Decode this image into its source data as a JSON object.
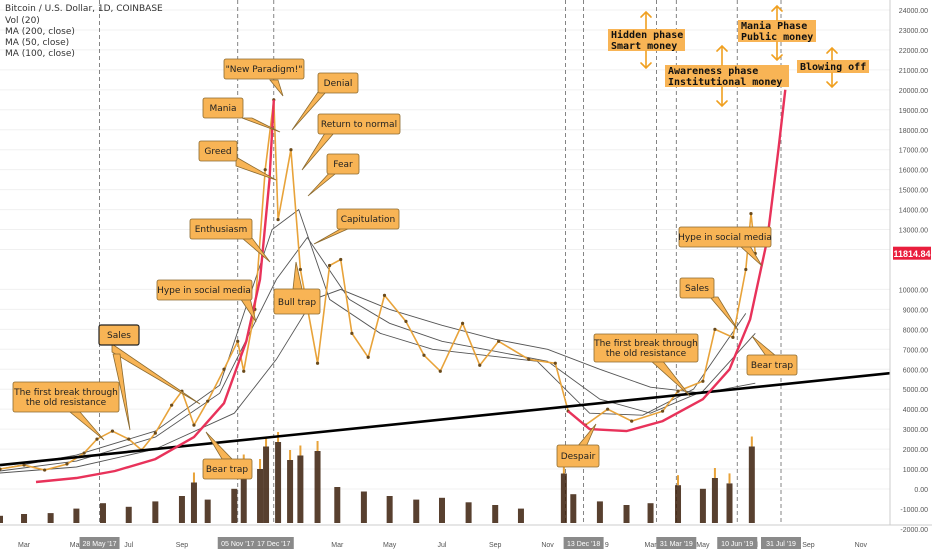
{
  "header": {
    "title": "Bitcoin / U.S. Dollar, 1D, COINBASE",
    "indicators": [
      "Vol (20)",
      "MA (200, close)",
      "MA (50, close)",
      "MA (100, close)"
    ]
  },
  "price_badge": "11814.84",
  "colors": {
    "price_badge": "#e91e3d",
    "parabola": "#e8325a",
    "callout_fill": "#f8b455",
    "callout_stroke": "#8a6a30",
    "trendline": "#000000",
    "candle": "#e8a33a",
    "volume": "#3b1f0a",
    "ma_line": "#555555"
  },
  "annotations": {
    "new_paradigm": "\"New Paradigm!\"",
    "denial": "Denial",
    "mania": "Mania",
    "return_to_normal": "Return to normal",
    "greed": "Greed",
    "fear": "Fear",
    "capitulation": "Capitulation",
    "enthusiasm": "Enthusiasm",
    "hype_1": "Hype in social media",
    "bull_trap": "Bull trap",
    "sales_1": "Sales",
    "first_break_1a": "The first break through",
    "first_break_1b": "the old resistance",
    "bear_trap_1": "Bear trap",
    "first_break_2a": "The first break through",
    "first_break_2b": "the old resistance",
    "despair": "Despair",
    "hype_2": "Hype in social media",
    "sales_2": "Sales",
    "bear_trap_2": "Bear trap",
    "hidden_phase_a": "Hidden phase",
    "hidden_phase_b": "Smart money",
    "awareness_a": "Awareness phase",
    "awareness_b": "Institutional money",
    "mania_phase_a": "Mania Phase",
    "mania_phase_b": "Public money",
    "blowing_off": "Blowing off"
  },
  "chart_data": {
    "type": "line",
    "title": "Bitcoin / U.S. Dollar, 1D, COINBASE",
    "y_ticks": [
      24000,
      23000,
      22000,
      21000,
      20000,
      19000,
      18000,
      17000,
      16000,
      15000,
      14000,
      13000,
      12000,
      10000,
      9000,
      8000,
      7000,
      6000,
      5000,
      4000,
      3000,
      2000,
      1000,
      0
    ],
    "y_tick_labels": [
      "24000.00",
      "23000.00",
      "22000.00",
      "21000.00",
      "20000.00",
      "19000.00",
      "18000.00",
      "17000.00",
      "16000.00",
      "15000.00",
      "14000.00",
      "13000.00",
      "12000.00",
      "10000.00",
      "9000.00",
      "8000.00",
      "7000.00",
      "6000.00",
      "5000.00",
      "4000.00",
      "3000.00",
      "2000.00",
      "1000.00",
      "0.00"
    ],
    "y_tick_labels_low": [
      "-1000.00",
      "-2000.00"
    ],
    "ylim": [
      -2300,
      24300
    ],
    "x_tick_labels": [
      {
        "label": "Mar",
        "date": "2017-03-01"
      },
      {
        "label": "May",
        "date": "2017-05-01"
      },
      {
        "label": "Jul",
        "date": "2017-07-01"
      },
      {
        "label": "Sep",
        "date": "2017-09-01"
      },
      {
        "label": "Mar",
        "date": "2018-03-01"
      },
      {
        "label": "May",
        "date": "2018-05-01"
      },
      {
        "label": "Jul",
        "date": "2018-07-01"
      },
      {
        "label": "Sep",
        "date": "2018-09-01"
      },
      {
        "label": "Nov",
        "date": "2018-11-01"
      },
      {
        "label": "9",
        "date": "2019-01-09"
      },
      {
        "label": "Mar",
        "date": "2019-03-01"
      },
      {
        "label": "May",
        "date": "2019-05-01"
      },
      {
        "label": "ul",
        "date": "2019-07-01"
      },
      {
        "label": "Sep",
        "date": "2019-09-01"
      },
      {
        "label": "Nov",
        "date": "2019-11-01"
      }
    ],
    "x_date_badges": [
      {
        "label": "28 May '17",
        "date": "2017-05-28"
      },
      {
        "label": "05 Nov '17",
        "date": "2017-11-05"
      },
      {
        "label": "17 Dec '17",
        "date": "2017-12-17"
      },
      {
        "label": "13 Dec '18",
        "date": "2018-12-13"
      },
      {
        "label": "31 Mar '19",
        "date": "2019-03-31"
      },
      {
        "label": "10 Jun '19",
        "date": "2019-06-10"
      },
      {
        "label": "31 Jul '19",
        "date": "2019-07-31"
      }
    ],
    "xlim": [
      "2017-02-01",
      "2019-12-05"
    ],
    "series": [
      {
        "kind": "price",
        "points": [
          [
            "2017-02-01",
            1000
          ],
          [
            "2017-03-01",
            1200
          ],
          [
            "2017-03-25",
            950
          ],
          [
            "2017-04-20",
            1250
          ],
          [
            "2017-05-10",
            1800
          ],
          [
            "2017-05-25",
            2500
          ],
          [
            "2017-06-12",
            2900
          ],
          [
            "2017-07-01",
            2500
          ],
          [
            "2017-07-16",
            1950
          ],
          [
            "2017-08-01",
            2800
          ],
          [
            "2017-08-20",
            4200
          ],
          [
            "2017-09-01",
            4900
          ],
          [
            "2017-09-15",
            3200
          ],
          [
            "2017-10-01",
            4400
          ],
          [
            "2017-10-20",
            6000
          ],
          [
            "2017-11-05",
            7400
          ],
          [
            "2017-11-12",
            5900
          ],
          [
            "2017-11-25",
            9000
          ],
          [
            "2017-12-07",
            16000
          ],
          [
            "2017-12-17",
            19500
          ],
          [
            "2017-12-22",
            13500
          ],
          [
            "2018-01-06",
            17000
          ],
          [
            "2018-01-17",
            11000
          ],
          [
            "2018-02-06",
            6300
          ],
          [
            "2018-02-20",
            11200
          ],
          [
            "2018-03-05",
            11500
          ],
          [
            "2018-03-18",
            7800
          ],
          [
            "2018-04-06",
            6600
          ],
          [
            "2018-04-25",
            9700
          ],
          [
            "2018-05-20",
            8400
          ],
          [
            "2018-06-10",
            6700
          ],
          [
            "2018-06-29",
            5900
          ],
          [
            "2018-07-25",
            8300
          ],
          [
            "2018-08-14",
            6200
          ],
          [
            "2018-09-05",
            7400
          ],
          [
            "2018-10-10",
            6500
          ],
          [
            "2018-11-10",
            6300
          ],
          [
            "2018-11-25",
            3900
          ],
          [
            "2018-12-15",
            3200
          ],
          [
            "2019-01-10",
            4000
          ],
          [
            "2019-02-07",
            3400
          ],
          [
            "2019-03-15",
            3900
          ],
          [
            "2019-04-02",
            4900
          ],
          [
            "2019-05-01",
            5400
          ],
          [
            "2019-05-15",
            8000
          ],
          [
            "2019-06-05",
            7600
          ],
          [
            "2019-06-20",
            11000
          ],
          [
            "2019-06-26",
            13800
          ],
          [
            "2019-07-01",
            11800
          ]
        ]
      },
      {
        "kind": "ma_long",
        "points": [
          [
            "2017-02-01",
            800
          ],
          [
            "2017-05-01",
            1100
          ],
          [
            "2017-08-01",
            2000
          ],
          [
            "2017-11-01",
            3800
          ],
          [
            "2017-12-20",
            6500
          ],
          [
            "2018-02-01",
            9500
          ],
          [
            "2018-03-05",
            10000
          ],
          [
            "2018-05-01",
            9000
          ],
          [
            "2018-07-01",
            8200
          ],
          [
            "2018-09-01",
            7500
          ],
          [
            "2018-11-01",
            7000
          ],
          [
            "2019-01-01",
            6000
          ],
          [
            "2019-03-01",
            5100
          ],
          [
            "2019-05-01",
            4800
          ],
          [
            "2019-07-01",
            5300
          ]
        ]
      },
      {
        "kind": "ma_mid",
        "points": [
          [
            "2017-02-01",
            900
          ],
          [
            "2017-05-01",
            1400
          ],
          [
            "2017-08-01",
            2600
          ],
          [
            "2017-10-15",
            4800
          ],
          [
            "2017-12-20",
            10500
          ],
          [
            "2018-01-25",
            12600
          ],
          [
            "2018-03-15",
            9500
          ],
          [
            "2018-05-01",
            8300
          ],
          [
            "2018-07-01",
            7400
          ],
          [
            "2018-09-01",
            6900
          ],
          [
            "2018-11-01",
            6400
          ],
          [
            "2019-01-01",
            4500
          ],
          [
            "2019-03-01",
            3800
          ],
          [
            "2019-05-01",
            4900
          ],
          [
            "2019-07-01",
            7800
          ]
        ]
      },
      {
        "kind": "ma_short",
        "points": [
          [
            "2017-02-01",
            1000
          ],
          [
            "2017-05-01",
            1700
          ],
          [
            "2017-08-01",
            2900
          ],
          [
            "2017-10-15",
            5200
          ],
          [
            "2017-12-15",
            13000
          ],
          [
            "2018-01-15",
            14000
          ],
          [
            "2018-02-20",
            9500
          ],
          [
            "2018-04-20",
            7800
          ],
          [
            "2018-06-20",
            7000
          ],
          [
            "2018-08-20",
            6700
          ],
          [
            "2018-10-20",
            6400
          ],
          [
            "2018-12-20",
            3800
          ],
          [
            "2019-02-20",
            3700
          ],
          [
            "2019-04-20",
            5000
          ],
          [
            "2019-06-20",
            8800
          ]
        ]
      },
      {
        "kind": "parabola_1",
        "points": [
          [
            "2017-03-15",
            350
          ],
          [
            "2017-05-01",
            550
          ],
          [
            "2017-06-15",
            900
          ],
          [
            "2017-08-01",
            1500
          ],
          [
            "2017-09-15",
            2600
          ],
          [
            "2017-10-20",
            4300
          ],
          [
            "2017-11-15",
            7400
          ],
          [
            "2017-12-01",
            10500
          ],
          [
            "2017-12-12",
            15500
          ],
          [
            "2017-12-17",
            19500
          ]
        ]
      },
      {
        "kind": "parabola_2",
        "points": [
          [
            "2018-11-25",
            3900
          ],
          [
            "2018-12-20",
            3000
          ],
          [
            "2019-02-01",
            2900
          ],
          [
            "2019-03-15",
            3400
          ],
          [
            "2019-05-01",
            4500
          ],
          [
            "2019-06-01",
            6000
          ],
          [
            "2019-06-25",
            8500
          ],
          [
            "2019-07-15",
            12500
          ],
          [
            "2019-07-28",
            17000
          ],
          [
            "2019-08-05",
            20000
          ]
        ]
      },
      {
        "kind": "trendline",
        "points": [
          [
            "2017-02-01",
            1200
          ],
          [
            "2019-12-05",
            5800
          ]
        ]
      }
    ],
    "volume_bars": [
      [
        "2017-02-01",
        0.8
      ],
      [
        "2017-03-01",
        1.0
      ],
      [
        "2017-04-01",
        1.1
      ],
      [
        "2017-05-01",
        1.6
      ],
      [
        "2017-06-01",
        2.2
      ],
      [
        "2017-07-01",
        1.8
      ],
      [
        "2017-08-01",
        2.4
      ],
      [
        "2017-09-01",
        3.0
      ],
      [
        "2017-09-15",
        4.5
      ],
      [
        "2017-10-01",
        2.6
      ],
      [
        "2017-11-01",
        3.8
      ],
      [
        "2017-11-12",
        6.5
      ],
      [
        "2017-12-01",
        6.0
      ],
      [
        "2017-12-08",
        8.5
      ],
      [
        "2017-12-22",
        9.0
      ],
      [
        "2018-01-05",
        7.0
      ],
      [
        "2018-01-17",
        7.5
      ],
      [
        "2018-02-06",
        8.0
      ],
      [
        "2018-03-01",
        4.0
      ],
      [
        "2018-04-01",
        3.5
      ],
      [
        "2018-05-01",
        3.0
      ],
      [
        "2018-06-01",
        2.6
      ],
      [
        "2018-07-01",
        2.8
      ],
      [
        "2018-08-01",
        2.3
      ],
      [
        "2018-09-01",
        2.0
      ],
      [
        "2018-10-01",
        1.6
      ],
      [
        "2018-11-20",
        5.5
      ],
      [
        "2018-12-01",
        3.2
      ],
      [
        "2019-01-01",
        2.4
      ],
      [
        "2019-02-01",
        2.0
      ],
      [
        "2019-03-01",
        2.2
      ],
      [
        "2019-04-02",
        4.2
      ],
      [
        "2019-05-01",
        3.8
      ],
      [
        "2019-05-15",
        5.0
      ],
      [
        "2019-06-01",
        4.4
      ],
      [
        "2019-06-27",
        8.5
      ]
    ]
  }
}
